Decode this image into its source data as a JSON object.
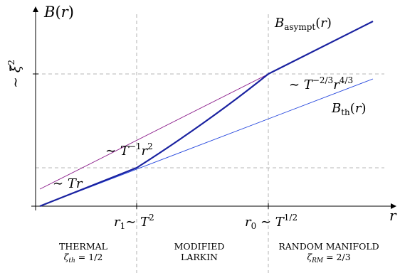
{
  "axes": {
    "y_label": "B(r)",
    "x_label": "r",
    "y_mark": "∼ ξ̃²"
  },
  "x_marks": {
    "r1": "r₁∼ T²",
    "r0": "r₀ ∼ T^{1/2}"
  },
  "curves": {
    "asymptotic": "B_asympt(r)",
    "thermal": "B_th(r)"
  },
  "scalings": {
    "linear": "∼ Tr",
    "larkin": "∼ T⁻¹r²",
    "random_manifold": "∼ T^{−2/3}r^{4/3}"
  },
  "regions": [
    {
      "name": "THERMAL",
      "exponent": "ζ_th = 1/2"
    },
    {
      "name": "MODIFIED",
      "exponent": "LARKIN"
    },
    {
      "name": "RANDOM MANIFOLD",
      "exponent": "ζ_RM = 2/3"
    }
  ],
  "colors": {
    "main_curve": "#1a22a0",
    "asymptotic_line": "#8a1a8a",
    "thermal_line": "#2244dd",
    "guides": "#a0a0a0"
  }
}
